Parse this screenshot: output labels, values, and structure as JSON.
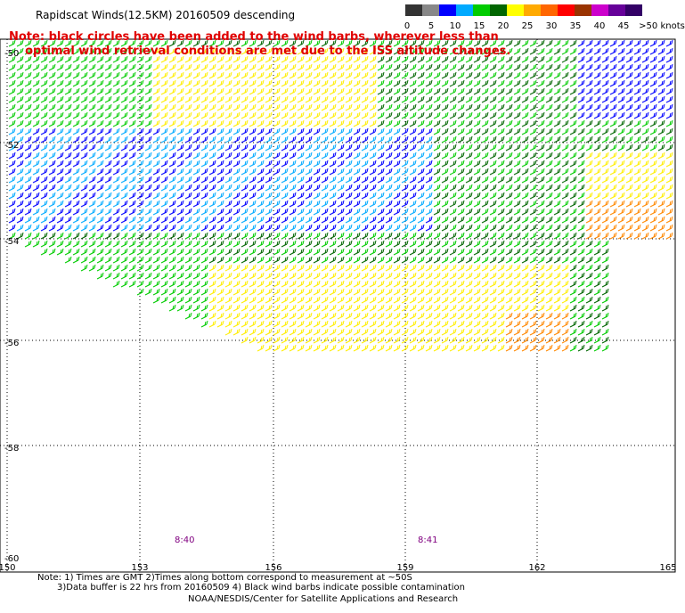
{
  "header": {
    "title": "Rapidscat Winds(12.5KM) 20160509 descending",
    "note_line1": "Note: black circles have been added to the wind barbs, wherever less than",
    "note_line2": "    optimal wind retrieval conditions are met due to the ISS altitude changes."
  },
  "colorbar": {
    "labels": [
      "0",
      "5",
      "10",
      "15",
      "20",
      "25",
      "30",
      "35",
      "40",
      "45",
      ">50 knots"
    ],
    "colors": [
      "#333333",
      "#888888",
      "#0000ff",
      "#00aaff",
      "#00cc00",
      "#006600",
      "#ffff00",
      "#ffaa00",
      "#ff6600",
      "#ff0000",
      "#993300",
      "#cc00cc",
      "#660099",
      "#330066"
    ]
  },
  "axes": {
    "lat_labels": [
      "-50",
      "-52",
      "-54",
      "-56",
      "-58",
      "-60"
    ],
    "lon_labels": [
      "150",
      "153",
      "156",
      "159",
      "162",
      "165"
    ]
  },
  "time_labels": [
    "8:40",
    "8:41"
  ],
  "footer": {
    "line1": "Note: 1) Times are GMT 2)Times along bottom correspond to measurement at ~50S",
    "line2": "3)Data buffer is 22 hrs from 20160509 4) Black wind barbs indicate possible contamination",
    "line3": "NOAA/NESDIS/Center for Satellite Applications and Research"
  }
}
